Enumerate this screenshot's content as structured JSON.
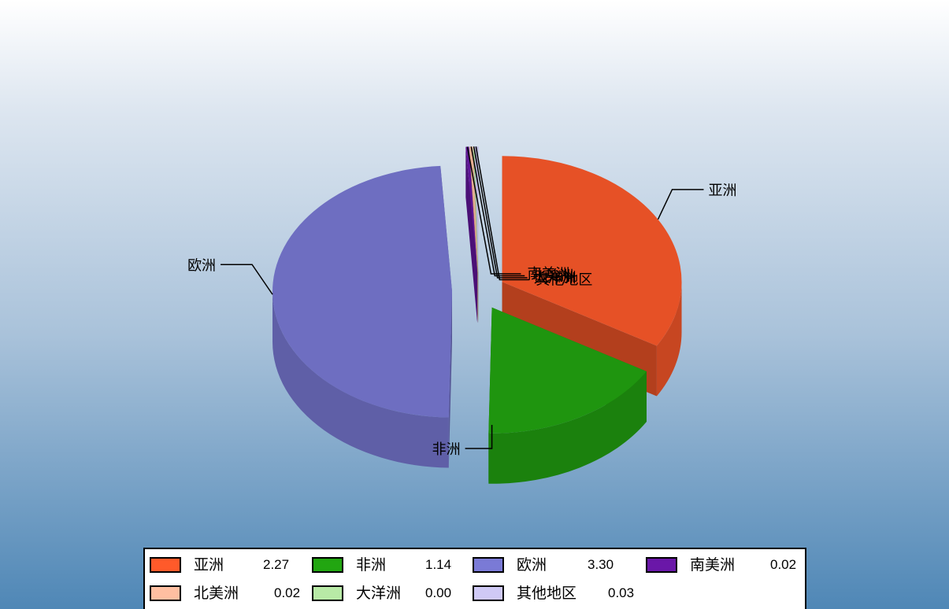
{
  "chart_data": {
    "type": "pie",
    "title": "",
    "categories": [
      "亚洲",
      "非洲",
      "欧洲",
      "南美洲",
      "北美洲",
      "大洋洲",
      "其他地区"
    ],
    "values": [
      2.27,
      1.14,
      3.3,
      0.02,
      0.02,
      0.0,
      0.03
    ],
    "value_labels": [
      "2.27",
      "1.14",
      "3.30",
      "0.02",
      "0.02",
      "0.00",
      "0.03"
    ],
    "colors": [
      "#ff5a2a",
      "#22a611",
      "#7a7ad6",
      "#6a17a8",
      "#ffbfa1",
      "#b8eaa6",
      "#cfc9f5"
    ],
    "style": "3D exploded pie",
    "legend_position": "bottom"
  }
}
